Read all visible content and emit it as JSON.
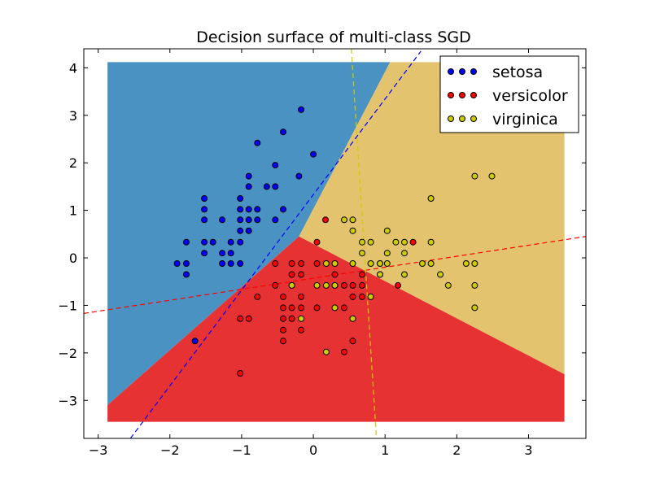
{
  "chart_data": {
    "type": "scatter",
    "title": "Decision surface of multi-class SGD",
    "xlabel": "",
    "ylabel": "",
    "xlim": [
      -3.2,
      3.8
    ],
    "ylim": [
      -3.8,
      4.4
    ],
    "xticks": [
      -3,
      -2,
      -1,
      0,
      1,
      2,
      3
    ],
    "yticks": [
      -3,
      -2,
      -1,
      0,
      1,
      2,
      3,
      4
    ],
    "xtick_labels": [
      "−3",
      "−2",
      "−1",
      "0",
      "1",
      "2",
      "3"
    ],
    "ytick_labels": [
      "−3",
      "−2",
      "−1",
      "0",
      "1",
      "2",
      "3",
      "4"
    ],
    "grid": false,
    "legend_position": "top-right",
    "mesh_extent": {
      "x": [
        -2.87,
        3.5
      ],
      "y": [
        -3.45,
        4.12
      ]
    },
    "regions": [
      {
        "class": "setosa",
        "color": "#4a92c2",
        "polygon": [
          [
            -2.87,
            4.12
          ],
          [
            1.07,
            4.12
          ],
          [
            -0.2,
            0.45
          ],
          [
            -2.87,
            -3.1
          ]
        ]
      },
      {
        "class": "virginica",
        "color": "#e3c36e",
        "polygon": [
          [
            1.07,
            4.12
          ],
          [
            3.5,
            4.12
          ],
          [
            3.5,
            -2.45
          ],
          [
            -0.2,
            0.45
          ]
        ]
      },
      {
        "class": "versicolor",
        "color": "#e63232",
        "polygon": [
          [
            -2.87,
            -3.1
          ],
          [
            -0.2,
            0.45
          ],
          [
            3.5,
            -2.45
          ],
          [
            3.5,
            -3.45
          ],
          [
            -2.87,
            -3.45
          ]
        ]
      }
    ],
    "hyperplanes": [
      {
        "class": "setosa",
        "color": "#0000ff",
        "points": [
          [
            -2.55,
            -3.8
          ],
          [
            1.5,
            4.35
          ]
        ]
      },
      {
        "class": "versicolor",
        "color": "#ff0000",
        "points": [
          [
            -3.2,
            -1.17
          ],
          [
            3.8,
            0.45
          ]
        ]
      },
      {
        "class": "virginica",
        "color": "#cccc00",
        "points": [
          [
            0.53,
            4.4
          ],
          [
            0.88,
            -3.8
          ]
        ]
      }
    ],
    "series": [
      {
        "name": "setosa",
        "color": "#0000ff",
        "points": [
          [
            -0.17,
            3.12
          ],
          [
            -0.42,
            2.65
          ],
          [
            0.0,
            2.18
          ],
          [
            -0.78,
            2.42
          ],
          [
            -0.53,
            1.95
          ],
          [
            -0.9,
            1.72
          ],
          [
            -0.2,
            1.72
          ],
          [
            -0.65,
            1.5
          ],
          [
            -0.53,
            1.5
          ],
          [
            -0.9,
            1.5
          ],
          [
            -1.02,
            1.25
          ],
          [
            -1.52,
            1.25
          ],
          [
            -0.9,
            1.02
          ],
          [
            -1.02,
            1.02
          ],
          [
            -0.78,
            1.02
          ],
          [
            -1.52,
            1.02
          ],
          [
            -0.42,
            1.02
          ],
          [
            -1.27,
            0.8
          ],
          [
            -1.02,
            0.8
          ],
          [
            -0.9,
            0.8
          ],
          [
            -0.78,
            0.8
          ],
          [
            -0.53,
            0.8
          ],
          [
            -1.52,
            0.8
          ],
          [
            -1.77,
            0.33
          ],
          [
            -1.52,
            0.33
          ],
          [
            -1.4,
            0.33
          ],
          [
            -1.02,
            0.57
          ],
          [
            -0.9,
            0.57
          ],
          [
            -1.15,
            0.33
          ],
          [
            -1.02,
            0.33
          ],
          [
            -1.52,
            0.1
          ],
          [
            -1.27,
            0.1
          ],
          [
            -1.15,
            0.1
          ],
          [
            -1.9,
            -0.12
          ],
          [
            -1.77,
            -0.12
          ],
          [
            -1.27,
            -0.12
          ],
          [
            -1.15,
            -0.12
          ],
          [
            -1.02,
            -0.12
          ],
          [
            -1.77,
            -0.35
          ],
          [
            -1.65,
            -1.75
          ]
        ]
      },
      {
        "name": "versicolor",
        "color": "#ff0000",
        "points": [
          [
            0.17,
            0.8
          ],
          [
            0.05,
            0.33
          ],
          [
            1.39,
            0.33
          ],
          [
            0.93,
            -0.12
          ],
          [
            -0.53,
            -0.12
          ],
          [
            -0.17,
            -0.12
          ],
          [
            -0.3,
            -0.12
          ],
          [
            0.05,
            -0.12
          ],
          [
            0.3,
            -0.35
          ],
          [
            -0.3,
            -0.35
          ],
          [
            -0.17,
            -0.35
          ],
          [
            0.3,
            -0.58
          ],
          [
            0.43,
            -0.58
          ],
          [
            0.55,
            -0.58
          ],
          [
            0.68,
            -0.35
          ],
          [
            0.68,
            -0.58
          ],
          [
            0.68,
            -0.82
          ],
          [
            0.55,
            -0.82
          ],
          [
            0.93,
            -0.35
          ],
          [
            1.18,
            -0.58
          ],
          [
            -0.3,
            -0.58
          ],
          [
            -0.53,
            -0.58
          ],
          [
            -0.42,
            -0.82
          ],
          [
            -0.17,
            -0.82
          ],
          [
            -0.42,
            -1.05
          ],
          [
            -0.17,
            -1.05
          ],
          [
            0.05,
            -1.05
          ],
          [
            -0.3,
            -1.05
          ],
          [
            0.43,
            -1.05
          ],
          [
            -0.78,
            -0.82
          ],
          [
            -0.3,
            -1.28
          ],
          [
            -0.42,
            -1.28
          ],
          [
            -0.42,
            -1.52
          ],
          [
            -0.42,
            -1.75
          ],
          [
            -0.17,
            -1.52
          ],
          [
            -1.02,
            -1.28
          ],
          [
            -0.9,
            -1.28
          ],
          [
            0.55,
            -1.75
          ],
          [
            0.43,
            -1.98
          ],
          [
            -1.02,
            -2.43
          ]
        ]
      },
      {
        "name": "virginica",
        "color": "#cccc00",
        "points": [
          [
            2.25,
            1.72
          ],
          [
            2.49,
            1.72
          ],
          [
            1.64,
            1.25
          ],
          [
            0.43,
            0.8
          ],
          [
            0.55,
            0.8
          ],
          [
            0.55,
            0.57
          ],
          [
            1.03,
            0.57
          ],
          [
            0.68,
            0.33
          ],
          [
            0.8,
            0.33
          ],
          [
            1.15,
            0.33
          ],
          [
            1.27,
            0.33
          ],
          [
            1.64,
            0.33
          ],
          [
            0.68,
            0.1
          ],
          [
            1.03,
            0.1
          ],
          [
            1.27,
            0.1
          ],
          [
            0.8,
            -0.12
          ],
          [
            0.93,
            -0.12
          ],
          [
            1.03,
            -0.12
          ],
          [
            1.52,
            -0.12
          ],
          [
            1.64,
            -0.12
          ],
          [
            2.13,
            -0.12
          ],
          [
            2.25,
            -0.12
          ],
          [
            0.18,
            -0.12
          ],
          [
            0.3,
            -0.12
          ],
          [
            0.55,
            -0.12
          ],
          [
            0.93,
            -0.35
          ],
          [
            1.27,
            -0.35
          ],
          [
            1.77,
            -0.35
          ],
          [
            0.3,
            -0.58
          ],
          [
            0.18,
            -0.58
          ],
          [
            -0.3,
            -0.58
          ],
          [
            1.88,
            -0.58
          ],
          [
            2.25,
            -0.58
          ],
          [
            0.05,
            -0.58
          ],
          [
            0.8,
            -0.82
          ],
          [
            0.3,
            -1.05
          ],
          [
            0.55,
            -1.28
          ],
          [
            -0.17,
            -1.28
          ],
          [
            2.25,
            -1.05
          ],
          [
            0.18,
            -1.98
          ]
        ]
      }
    ]
  }
}
